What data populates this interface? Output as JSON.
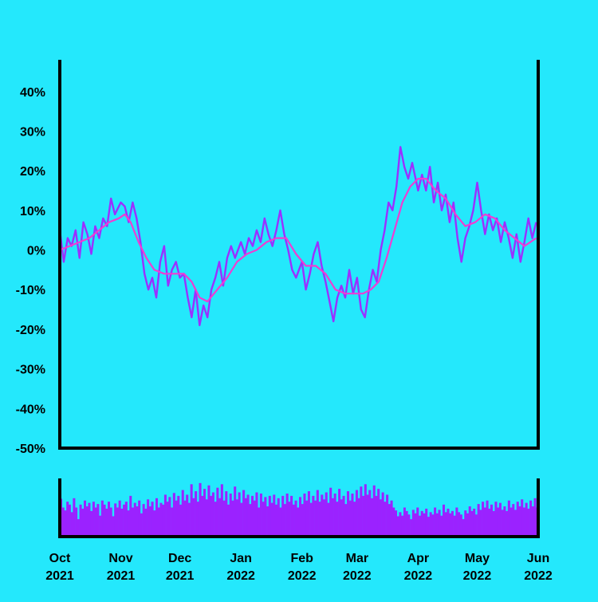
{
  "chart_data": {
    "type": "line",
    "title": "",
    "xlabel": "",
    "ylabel": "",
    "colors": {
      "background": "#24e8fc",
      "series_line": "#9b30ff",
      "moving_average": "#f03cd2",
      "volume_bars": "#9b22ff",
      "axis": "#000000"
    },
    "ylim": [
      -50,
      48
    ],
    "yticks": [
      "40%",
      "30%",
      "20%",
      "10%",
      "0%",
      "-10%",
      "-20%",
      "-30%",
      "-40%",
      "-50%"
    ],
    "ytick_values": [
      40,
      30,
      20,
      10,
      0,
      -10,
      -20,
      -30,
      -40,
      -50
    ],
    "xlim": [
      "2021-10-01",
      "2022-06-01"
    ],
    "xticks": [
      {
        "date": "2021-10-01",
        "month": "Oct",
        "year": "2021"
      },
      {
        "date": "2021-11-01",
        "month": "Nov",
        "year": "2021"
      },
      {
        "date": "2021-12-01",
        "month": "Dec",
        "year": "2021"
      },
      {
        "date": "2022-01-01",
        "month": "Jan",
        "year": "2022"
      },
      {
        "date": "2022-02-01",
        "month": "Feb",
        "year": "2022"
      },
      {
        "date": "2022-03-01",
        "month": "Mar",
        "year": "2022"
      },
      {
        "date": "2022-04-01",
        "month": "Apr",
        "year": "2022"
      },
      {
        "date": "2022-05-01",
        "month": "May",
        "year": "2022"
      },
      {
        "date": "2022-06-01",
        "month": "Jun",
        "year": "2022"
      }
    ],
    "series": [
      {
        "values": [
          {
            "date": "2021-10-01",
            "value": 5
          },
          {
            "date": "2021-10-03",
            "value": -3
          },
          {
            "date": "2021-10-05",
            "value": 3
          },
          {
            "date": "2021-10-07",
            "value": 1
          },
          {
            "date": "2021-10-09",
            "value": 5
          },
          {
            "date": "2021-10-11",
            "value": -2
          },
          {
            "date": "2021-10-13",
            "value": 7
          },
          {
            "date": "2021-10-15",
            "value": 4
          },
          {
            "date": "2021-10-17",
            "value": -1
          },
          {
            "date": "2021-10-19",
            "value": 6
          },
          {
            "date": "2021-10-21",
            "value": 3
          },
          {
            "date": "2021-10-23",
            "value": 8
          },
          {
            "date": "2021-10-25",
            "value": 6
          },
          {
            "date": "2021-10-27",
            "value": 13
          },
          {
            "date": "2021-10-29",
            "value": 9
          },
          {
            "date": "2021-11-01",
            "value": 12
          },
          {
            "date": "2021-11-03",
            "value": 11
          },
          {
            "date": "2021-11-05",
            "value": 7
          },
          {
            "date": "2021-11-07",
            "value": 12
          },
          {
            "date": "2021-11-09",
            "value": 8
          },
          {
            "date": "2021-11-11",
            "value": 2
          },
          {
            "date": "2021-11-13",
            "value": -6
          },
          {
            "date": "2021-11-15",
            "value": -10
          },
          {
            "date": "2021-11-17",
            "value": -7
          },
          {
            "date": "2021-11-19",
            "value": -12
          },
          {
            "date": "2021-11-21",
            "value": -3
          },
          {
            "date": "2021-11-23",
            "value": 1
          },
          {
            "date": "2021-11-25",
            "value": -9
          },
          {
            "date": "2021-11-27",
            "value": -5
          },
          {
            "date": "2021-11-29",
            "value": -3
          },
          {
            "date": "2021-12-01",
            "value": -7
          },
          {
            "date": "2021-12-03",
            "value": -6
          },
          {
            "date": "2021-12-05",
            "value": -12
          },
          {
            "date": "2021-12-07",
            "value": -17
          },
          {
            "date": "2021-12-09",
            "value": -10
          },
          {
            "date": "2021-12-11",
            "value": -19
          },
          {
            "date": "2021-12-13",
            "value": -14
          },
          {
            "date": "2021-12-15",
            "value": -17
          },
          {
            "date": "2021-12-17",
            "value": -10
          },
          {
            "date": "2021-12-19",
            "value": -7
          },
          {
            "date": "2021-12-21",
            "value": -3
          },
          {
            "date": "2021-12-23",
            "value": -9
          },
          {
            "date": "2021-12-25",
            "value": -2
          },
          {
            "date": "2021-12-27",
            "value": 1
          },
          {
            "date": "2021-12-29",
            "value": -2
          },
          {
            "date": "2022-01-01",
            "value": 2
          },
          {
            "date": "2022-01-03",
            "value": -1
          },
          {
            "date": "2022-01-05",
            "value": 3
          },
          {
            "date": "2022-01-07",
            "value": 1
          },
          {
            "date": "2022-01-09",
            "value": 5
          },
          {
            "date": "2022-01-11",
            "value": 2
          },
          {
            "date": "2022-01-13",
            "value": 8
          },
          {
            "date": "2022-01-15",
            "value": 4
          },
          {
            "date": "2022-01-17",
            "value": 1
          },
          {
            "date": "2022-01-19",
            "value": 5
          },
          {
            "date": "2022-01-21",
            "value": 10
          },
          {
            "date": "2022-01-23",
            "value": 4
          },
          {
            "date": "2022-01-25",
            "value": 0
          },
          {
            "date": "2022-01-27",
            "value": -5
          },
          {
            "date": "2022-01-29",
            "value": -7
          },
          {
            "date": "2022-02-01",
            "value": -3
          },
          {
            "date": "2022-02-03",
            "value": -10
          },
          {
            "date": "2022-02-05",
            "value": -6
          },
          {
            "date": "2022-02-07",
            "value": -1
          },
          {
            "date": "2022-02-09",
            "value": 2
          },
          {
            "date": "2022-02-11",
            "value": -4
          },
          {
            "date": "2022-02-13",
            "value": -8
          },
          {
            "date": "2022-02-15",
            "value": -13
          },
          {
            "date": "2022-02-17",
            "value": -18
          },
          {
            "date": "2022-02-19",
            "value": -12
          },
          {
            "date": "2022-02-21",
            "value": -9
          },
          {
            "date": "2022-02-23",
            "value": -12
          },
          {
            "date": "2022-02-25",
            "value": -5
          },
          {
            "date": "2022-02-27",
            "value": -11
          },
          {
            "date": "2022-03-01",
            "value": -7
          },
          {
            "date": "2022-03-03",
            "value": -15
          },
          {
            "date": "2022-03-05",
            "value": -17
          },
          {
            "date": "2022-03-07",
            "value": -10
          },
          {
            "date": "2022-03-09",
            "value": -5
          },
          {
            "date": "2022-03-11",
            "value": -8
          },
          {
            "date": "2022-03-13",
            "value": 0
          },
          {
            "date": "2022-03-15",
            "value": 5
          },
          {
            "date": "2022-03-17",
            "value": 12
          },
          {
            "date": "2022-03-19",
            "value": 10
          },
          {
            "date": "2022-03-21",
            "value": 16
          },
          {
            "date": "2022-03-23",
            "value": 26
          },
          {
            "date": "2022-03-25",
            "value": 21
          },
          {
            "date": "2022-03-27",
            "value": 18
          },
          {
            "date": "2022-03-29",
            "value": 22
          },
          {
            "date": "2022-04-01",
            "value": 15
          },
          {
            "date": "2022-04-03",
            "value": 19
          },
          {
            "date": "2022-04-05",
            "value": 15
          },
          {
            "date": "2022-04-07",
            "value": 21
          },
          {
            "date": "2022-04-09",
            "value": 12
          },
          {
            "date": "2022-04-11",
            "value": 17
          },
          {
            "date": "2022-04-13",
            "value": 10
          },
          {
            "date": "2022-04-15",
            "value": 14
          },
          {
            "date": "2022-04-17",
            "value": 7
          },
          {
            "date": "2022-04-19",
            "value": 12
          },
          {
            "date": "2022-04-21",
            "value": 3
          },
          {
            "date": "2022-04-23",
            "value": -3
          },
          {
            "date": "2022-04-25",
            "value": 3
          },
          {
            "date": "2022-04-27",
            "value": 6
          },
          {
            "date": "2022-04-29",
            "value": 10
          },
          {
            "date": "2022-05-01",
            "value": 17
          },
          {
            "date": "2022-05-03",
            "value": 10
          },
          {
            "date": "2022-05-05",
            "value": 4
          },
          {
            "date": "2022-05-07",
            "value": 9
          },
          {
            "date": "2022-05-09",
            "value": 5
          },
          {
            "date": "2022-05-11",
            "value": 8
          },
          {
            "date": "2022-05-13",
            "value": 2
          },
          {
            "date": "2022-05-15",
            "value": 7
          },
          {
            "date": "2022-05-17",
            "value": 3
          },
          {
            "date": "2022-05-19",
            "value": -2
          },
          {
            "date": "2022-05-21",
            "value": 4
          },
          {
            "date": "2022-05-23",
            "value": -3
          },
          {
            "date": "2022-05-25",
            "value": 2
          },
          {
            "date": "2022-05-27",
            "value": 8
          },
          {
            "date": "2022-05-29",
            "value": 3
          },
          {
            "date": "2022-05-31",
            "value": 7
          }
        ]
      },
      {
        "values": [
          {
            "date": "2021-10-01",
            "value": 0
          },
          {
            "date": "2021-10-06",
            "value": 1
          },
          {
            "date": "2021-10-11",
            "value": 2
          },
          {
            "date": "2021-10-16",
            "value": 3
          },
          {
            "date": "2021-10-21",
            "value": 5
          },
          {
            "date": "2021-10-26",
            "value": 7
          },
          {
            "date": "2021-10-31",
            "value": 8
          },
          {
            "date": "2021-11-03",
            "value": 9
          },
          {
            "date": "2021-11-06",
            "value": 7
          },
          {
            "date": "2021-11-10",
            "value": 2
          },
          {
            "date": "2021-11-14",
            "value": -2
          },
          {
            "date": "2021-11-18",
            "value": -5
          },
          {
            "date": "2021-11-23",
            "value": -6
          },
          {
            "date": "2021-11-28",
            "value": -6
          },
          {
            "date": "2021-12-03",
            "value": -6
          },
          {
            "date": "2021-12-07",
            "value": -8
          },
          {
            "date": "2021-12-11",
            "value": -12
          },
          {
            "date": "2021-12-15",
            "value": -13
          },
          {
            "date": "2021-12-20",
            "value": -10
          },
          {
            "date": "2021-12-25",
            "value": -7
          },
          {
            "date": "2021-12-30",
            "value": -3
          },
          {
            "date": "2022-01-04",
            "value": -1
          },
          {
            "date": "2022-01-09",
            "value": 0
          },
          {
            "date": "2022-01-14",
            "value": 2
          },
          {
            "date": "2022-01-19",
            "value": 3
          },
          {
            "date": "2022-01-24",
            "value": 3
          },
          {
            "date": "2022-01-29",
            "value": -1
          },
          {
            "date": "2022-02-03",
            "value": -4
          },
          {
            "date": "2022-02-08",
            "value": -4
          },
          {
            "date": "2022-02-13",
            "value": -6
          },
          {
            "date": "2022-02-18",
            "value": -10
          },
          {
            "date": "2022-02-23",
            "value": -11
          },
          {
            "date": "2022-02-28",
            "value": -11
          },
          {
            "date": "2022-03-04",
            "value": -11
          },
          {
            "date": "2022-03-08",
            "value": -10
          },
          {
            "date": "2022-03-12",
            "value": -8
          },
          {
            "date": "2022-03-16",
            "value": -2
          },
          {
            "date": "2022-03-20",
            "value": 5
          },
          {
            "date": "2022-03-24",
            "value": 12
          },
          {
            "date": "2022-03-28",
            "value": 16
          },
          {
            "date": "2022-04-01",
            "value": 18
          },
          {
            "date": "2022-04-05",
            "value": 18
          },
          {
            "date": "2022-04-10",
            "value": 15
          },
          {
            "date": "2022-04-15",
            "value": 13
          },
          {
            "date": "2022-04-20",
            "value": 9
          },
          {
            "date": "2022-04-25",
            "value": 6
          },
          {
            "date": "2022-04-30",
            "value": 7
          },
          {
            "date": "2022-05-05",
            "value": 9
          },
          {
            "date": "2022-05-10",
            "value": 8
          },
          {
            "date": "2022-05-15",
            "value": 5
          },
          {
            "date": "2022-05-20",
            "value": 3
          },
          {
            "date": "2022-05-25",
            "value": 1
          },
          {
            "date": "2022-05-31",
            "value": 3
          }
        ]
      }
    ],
    "volume": {
      "color": "#9b22ff",
      "values": [
        0.65,
        0.5,
        0.45,
        0.6,
        0.55,
        0.42,
        0.66,
        0.5,
        0.3,
        0.55,
        0.48,
        0.62,
        0.52,
        0.58,
        0.44,
        0.6,
        0.5,
        0.56,
        0.36,
        0.62,
        0.55,
        0.48,
        0.6,
        0.5,
        0.35,
        0.57,
        0.5,
        0.62,
        0.48,
        0.55,
        0.6,
        0.45,
        0.7,
        0.5,
        0.58,
        0.52,
        0.62,
        0.4,
        0.56,
        0.48,
        0.64,
        0.52,
        0.6,
        0.45,
        0.66,
        0.5,
        0.58,
        0.55,
        0.72,
        0.6,
        0.68,
        0.5,
        0.75,
        0.62,
        0.7,
        0.55,
        0.8,
        0.62,
        0.72,
        0.58,
        0.9,
        0.66,
        0.78,
        0.6,
        0.92,
        0.7,
        0.82,
        0.64,
        0.88,
        0.7,
        0.76,
        0.6,
        0.84,
        0.66,
        0.9,
        0.62,
        0.78,
        0.55,
        0.74,
        0.62,
        0.86,
        0.64,
        0.76,
        0.58,
        0.8,
        0.66,
        0.72,
        0.56,
        0.7,
        0.62,
        0.76,
        0.5,
        0.74,
        0.6,
        0.68,
        0.52,
        0.7,
        0.58,
        0.72,
        0.55,
        0.66,
        0.5,
        0.7,
        0.56,
        0.74,
        0.6,
        0.7,
        0.55,
        0.62,
        0.5,
        0.68,
        0.56,
        0.74,
        0.62,
        0.78,
        0.58,
        0.7,
        0.62,
        0.8,
        0.6,
        0.72,
        0.64,
        0.76,
        0.58,
        0.84,
        0.66,
        0.74,
        0.6,
        0.82,
        0.64,
        0.7,
        0.56,
        0.78,
        0.62,
        0.74,
        0.6,
        0.8,
        0.66,
        0.86,
        0.7,
        0.9,
        0.72,
        0.8,
        0.66,
        0.88,
        0.7,
        0.82,
        0.64,
        0.76,
        0.6,
        0.72,
        0.56,
        0.62,
        0.5,
        0.45,
        0.35,
        0.42,
        0.36,
        0.5,
        0.44,
        0.38,
        0.3,
        0.46,
        0.4,
        0.5,
        0.36,
        0.44,
        0.4,
        0.48,
        0.34,
        0.42,
        0.38,
        0.5,
        0.4,
        0.46,
        0.36,
        0.55,
        0.42,
        0.48,
        0.4,
        0.44,
        0.36,
        0.5,
        0.42,
        0.38,
        0.3,
        0.45,
        0.4,
        0.52,
        0.44,
        0.48,
        0.38,
        0.56,
        0.46,
        0.6,
        0.5,
        0.62,
        0.48,
        0.55,
        0.44,
        0.6,
        0.5,
        0.58,
        0.46,
        0.52,
        0.44,
        0.62,
        0.5,
        0.56,
        0.46,
        0.6,
        0.52,
        0.64,
        0.5,
        0.58,
        0.48,
        0.62,
        0.52,
        0.66,
        0.5
      ]
    }
  }
}
